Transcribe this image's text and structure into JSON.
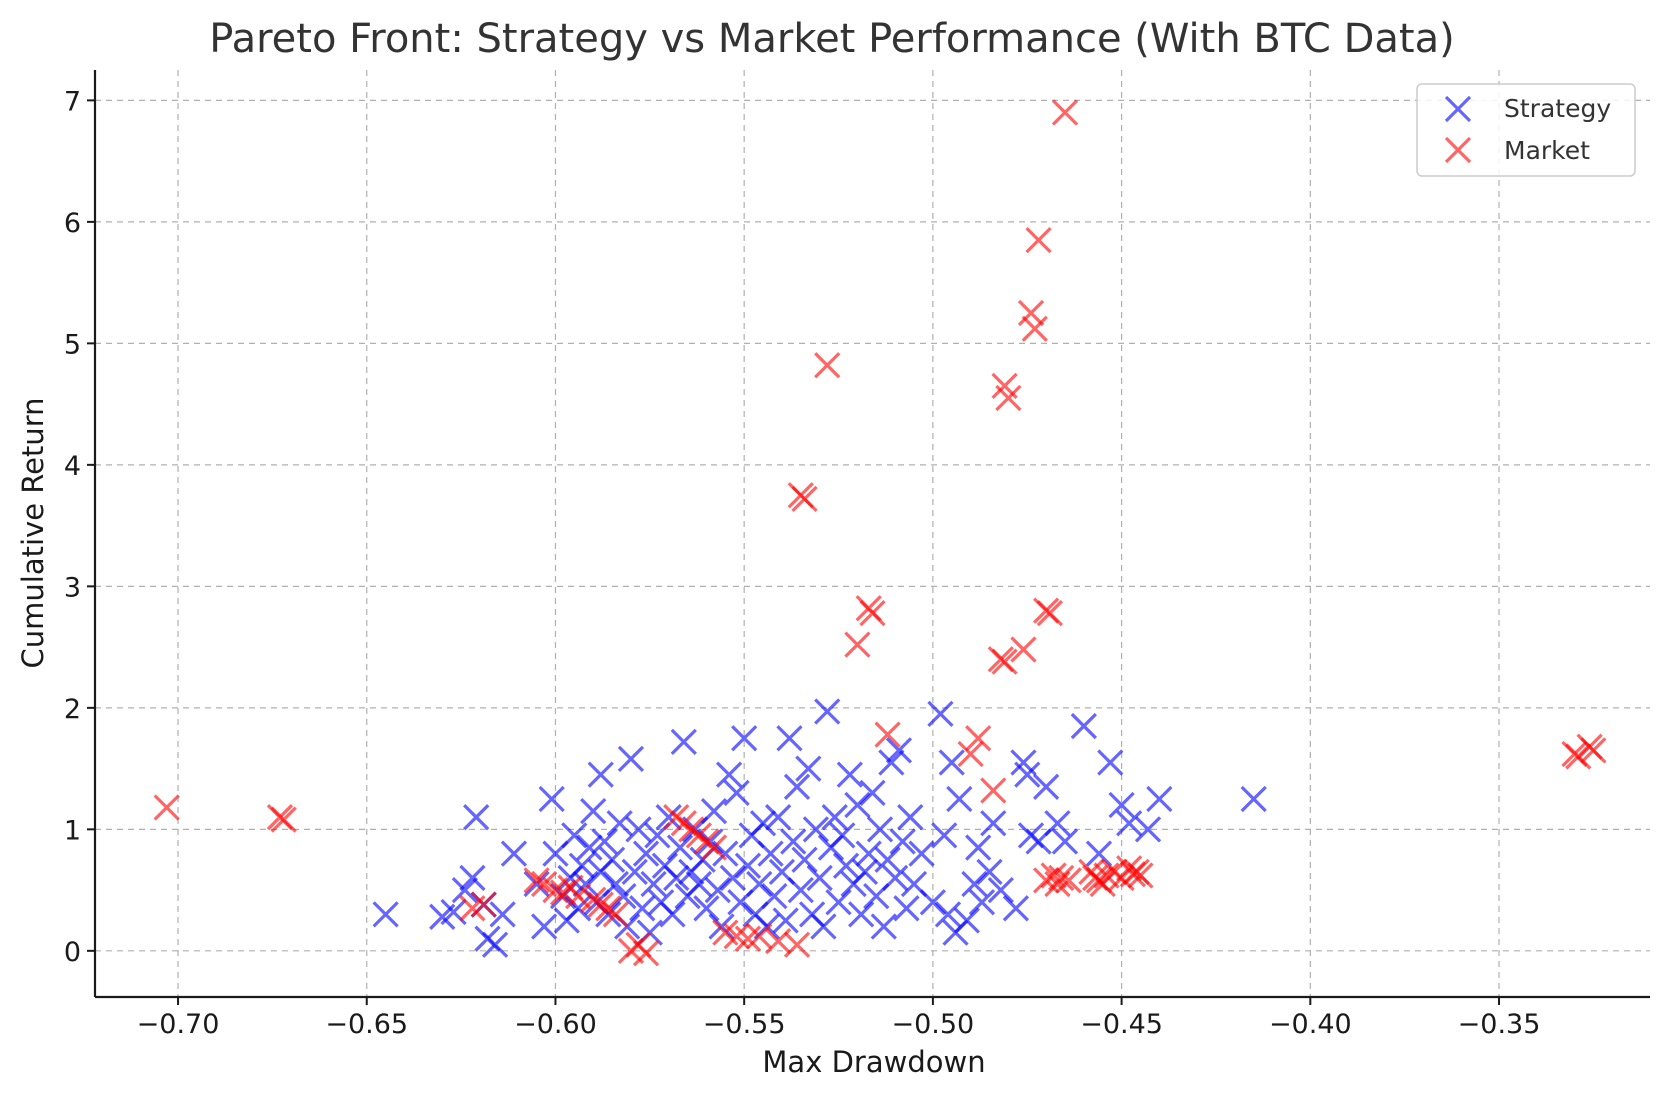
{
  "chart_data": {
    "type": "scatter",
    "title": "Pareto Front: Strategy vs Market Performance (With BTC Data)",
    "xlabel": "Max Drawdown",
    "ylabel": "Cumulative Return",
    "xlim": [
      -0.722,
      -0.31
    ],
    "ylim": [
      -0.38,
      7.25
    ],
    "xticks": [
      -0.7,
      -0.65,
      -0.6,
      -0.55,
      -0.5,
      -0.45,
      -0.4,
      -0.35
    ],
    "xtick_labels": [
      "−0.70",
      "−0.65",
      "−0.60",
      "−0.55",
      "−0.50",
      "−0.45",
      "−0.40",
      "−0.35"
    ],
    "yticks": [
      0,
      1,
      2,
      3,
      4,
      5,
      6,
      7
    ],
    "ytick_labels": [
      "0",
      "1",
      "2",
      "3",
      "4",
      "5",
      "6",
      "7"
    ],
    "grid": true,
    "legend_position": "upper-right",
    "marker": "x",
    "series": [
      {
        "name": "Strategy",
        "color": "#0000ff",
        "opacity": 0.6,
        "points": [
          [
            -0.645,
            0.3
          ],
          [
            -0.63,
            0.28
          ],
          [
            -0.627,
            0.32
          ],
          [
            -0.624,
            0.5
          ],
          [
            -0.622,
            0.6
          ],
          [
            -0.621,
            1.1
          ],
          [
            -0.619,
            0.38
          ],
          [
            -0.618,
            0.1
          ],
          [
            -0.616,
            0.05
          ],
          [
            -0.614,
            0.3
          ],
          [
            -0.611,
            0.8
          ],
          [
            -0.605,
            0.55
          ],
          [
            -0.603,
            0.2
          ],
          [
            -0.601,
            1.25
          ],
          [
            -0.6,
            0.8
          ],
          [
            -0.598,
            0.45
          ],
          [
            -0.597,
            0.25
          ],
          [
            -0.596,
            0.6
          ],
          [
            -0.595,
            0.95
          ],
          [
            -0.594,
            0.35
          ],
          [
            -0.593,
            0.7
          ],
          [
            -0.592,
            0.55
          ],
          [
            -0.591,
            0.85
          ],
          [
            -0.59,
            1.15
          ],
          [
            -0.589,
            0.4
          ],
          [
            -0.588,
            0.65
          ],
          [
            -0.588,
            1.45
          ],
          [
            -0.587,
            0.9
          ],
          [
            -0.586,
            0.3
          ],
          [
            -0.585,
            0.75
          ],
          [
            -0.584,
            0.55
          ],
          [
            -0.583,
            1.05
          ],
          [
            -0.582,
            0.45
          ],
          [
            -0.581,
            0.2
          ],
          [
            -0.58,
            1.58
          ],
          [
            -0.579,
            0.65
          ],
          [
            -0.578,
            1.0
          ],
          [
            -0.577,
            0.35
          ],
          [
            -0.576,
            0.8
          ],
          [
            -0.575,
            0.15
          ],
          [
            -0.574,
            0.55
          ],
          [
            -0.573,
            0.95
          ],
          [
            -0.572,
            0.4
          ],
          [
            -0.571,
            0.7
          ],
          [
            -0.57,
            1.1
          ],
          [
            -0.569,
            0.3
          ],
          [
            -0.568,
            0.6
          ],
          [
            -0.567,
            0.85
          ],
          [
            -0.566,
            1.72
          ],
          [
            -0.565,
            0.45
          ],
          [
            -0.564,
            0.65
          ],
          [
            -0.563,
            1.0
          ],
          [
            -0.562,
            0.55
          ],
          [
            -0.561,
            0.75
          ],
          [
            -0.56,
            0.35
          ],
          [
            -0.559,
            0.9
          ],
          [
            -0.558,
            1.15
          ],
          [
            -0.557,
            0.5
          ],
          [
            -0.556,
            0.2
          ],
          [
            -0.555,
            0.8
          ],
          [
            -0.554,
            1.45
          ],
          [
            -0.553,
            0.6
          ],
          [
            -0.552,
            1.3
          ],
          [
            -0.551,
            0.4
          ],
          [
            -0.55,
            1.75
          ],
          [
            -0.549,
            0.7
          ],
          [
            -0.548,
            0.95
          ],
          [
            -0.547,
            0.3
          ],
          [
            -0.546,
            0.55
          ],
          [
            -0.545,
            1.05
          ],
          [
            -0.544,
            0.2
          ],
          [
            -0.543,
            0.8
          ],
          [
            -0.542,
            0.45
          ],
          [
            -0.541,
            1.1
          ],
          [
            -0.54,
            0.65
          ],
          [
            -0.539,
            0.25
          ],
          [
            -0.538,
            1.75
          ],
          [
            -0.537,
            0.9
          ],
          [
            -0.536,
            1.35
          ],
          [
            -0.535,
            0.5
          ],
          [
            -0.534,
            0.75
          ],
          [
            -0.533,
            1.5
          ],
          [
            -0.532,
            0.3
          ],
          [
            -0.531,
            1.0
          ],
          [
            -0.53,
            0.6
          ],
          [
            -0.529,
            0.2
          ],
          [
            -0.528,
            1.97
          ],
          [
            -0.527,
            0.85
          ],
          [
            -0.526,
            1.1
          ],
          [
            -0.525,
            0.4
          ],
          [
            -0.524,
            0.95
          ],
          [
            -0.523,
            0.7
          ],
          [
            -0.522,
            1.45
          ],
          [
            -0.521,
            0.55
          ],
          [
            -0.52,
            1.2
          ],
          [
            -0.519,
            0.3
          ],
          [
            -0.518,
            0.65
          ],
          [
            -0.517,
            0.8
          ],
          [
            -0.516,
            1.3
          ],
          [
            -0.515,
            0.45
          ],
          [
            -0.514,
            1.0
          ],
          [
            -0.513,
            0.2
          ],
          [
            -0.512,
            0.75
          ],
          [
            -0.511,
            1.55
          ],
          [
            -0.51,
            0.6
          ],
          [
            -0.509,
            1.65
          ],
          [
            -0.508,
            0.9
          ],
          [
            -0.507,
            0.35
          ],
          [
            -0.506,
            1.1
          ],
          [
            -0.505,
            0.55
          ],
          [
            -0.503,
            0.8
          ],
          [
            -0.5,
            0.4
          ],
          [
            -0.498,
            1.95
          ],
          [
            -0.497,
            0.95
          ],
          [
            -0.496,
            0.3
          ],
          [
            -0.495,
            1.55
          ],
          [
            -0.494,
            0.15
          ],
          [
            -0.493,
            1.25
          ],
          [
            -0.491,
            0.25
          ],
          [
            -0.489,
            0.55
          ],
          [
            -0.488,
            0.85
          ],
          [
            -0.487,
            0.4
          ],
          [
            -0.485,
            0.65
          ],
          [
            -0.484,
            1.05
          ],
          [
            -0.482,
            0.5
          ],
          [
            -0.478,
            0.35
          ],
          [
            -0.476,
            1.55
          ],
          [
            -0.475,
            1.45
          ],
          [
            -0.474,
            0.95
          ],
          [
            -0.472,
            0.9
          ],
          [
            -0.47,
            1.35
          ],
          [
            -0.467,
            1.05
          ],
          [
            -0.465,
            0.9
          ],
          [
            -0.46,
            1.85
          ],
          [
            -0.456,
            0.8
          ],
          [
            -0.453,
            1.55
          ],
          [
            -0.45,
            1.2
          ],
          [
            -0.448,
            1.05
          ],
          [
            -0.443,
            1.0
          ],
          [
            -0.44,
            1.25
          ],
          [
            -0.415,
            1.25
          ]
        ]
      },
      {
        "name": "Market",
        "color": "#ff0000",
        "opacity": 0.6,
        "points": [
          [
            -0.703,
            1.18
          ],
          [
            -0.673,
            1.1
          ],
          [
            -0.672,
            1.08
          ],
          [
            -0.622,
            0.35
          ],
          [
            -0.619,
            0.38
          ],
          [
            -0.605,
            0.58
          ],
          [
            -0.603,
            0.55
          ],
          [
            -0.6,
            0.5
          ],
          [
            -0.598,
            0.48
          ],
          [
            -0.596,
            0.52
          ],
          [
            -0.594,
            0.45
          ],
          [
            -0.59,
            0.42
          ],
          [
            -0.588,
            0.38
          ],
          [
            -0.586,
            0.35
          ],
          [
            -0.584,
            0.3
          ],
          [
            -0.58,
            0.0
          ],
          [
            -0.578,
            0.05
          ],
          [
            -0.576,
            -0.02
          ],
          [
            -0.568,
            1.1
          ],
          [
            -0.566,
            1.05
          ],
          [
            -0.564,
            1.0
          ],
          [
            -0.562,
            0.95
          ],
          [
            -0.56,
            0.9
          ],
          [
            -0.558,
            0.85
          ],
          [
            -0.555,
            0.15
          ],
          [
            -0.552,
            0.12
          ],
          [
            -0.549,
            0.1
          ],
          [
            -0.546,
            0.12
          ],
          [
            -0.541,
            0.08
          ],
          [
            -0.536,
            0.05
          ],
          [
            -0.535,
            3.75
          ],
          [
            -0.534,
            3.72
          ],
          [
            -0.528,
            4.82
          ],
          [
            -0.52,
            2.52
          ],
          [
            -0.517,
            2.82
          ],
          [
            -0.516,
            2.78
          ],
          [
            -0.512,
            1.78
          ],
          [
            -0.49,
            1.62
          ],
          [
            -0.488,
            1.75
          ],
          [
            -0.484,
            1.32
          ],
          [
            -0.482,
            2.4
          ],
          [
            -0.481,
            2.38
          ],
          [
            -0.481,
            4.65
          ],
          [
            -0.48,
            4.55
          ],
          [
            -0.476,
            2.48
          ],
          [
            -0.474,
            5.25
          ],
          [
            -0.473,
            5.12
          ],
          [
            -0.472,
            5.85
          ],
          [
            -0.47,
            2.8
          ],
          [
            -0.469,
            2.78
          ],
          [
            -0.465,
            6.9
          ],
          [
            -0.47,
            0.58
          ],
          [
            -0.468,
            0.62
          ],
          [
            -0.467,
            0.55
          ],
          [
            -0.466,
            0.6
          ],
          [
            -0.464,
            0.58
          ],
          [
            -0.458,
            0.65
          ],
          [
            -0.457,
            0.6
          ],
          [
            -0.456,
            0.58
          ],
          [
            -0.455,
            0.55
          ],
          [
            -0.454,
            0.62
          ],
          [
            -0.452,
            0.65
          ],
          [
            -0.45,
            0.6
          ],
          [
            -0.448,
            0.68
          ],
          [
            -0.447,
            0.63
          ],
          [
            -0.446,
            0.65
          ],
          [
            -0.445,
            0.62
          ],
          [
            -0.33,
            1.62
          ],
          [
            -0.329,
            1.6
          ],
          [
            -0.326,
            1.68
          ],
          [
            -0.325,
            1.65
          ]
        ]
      }
    ]
  }
}
